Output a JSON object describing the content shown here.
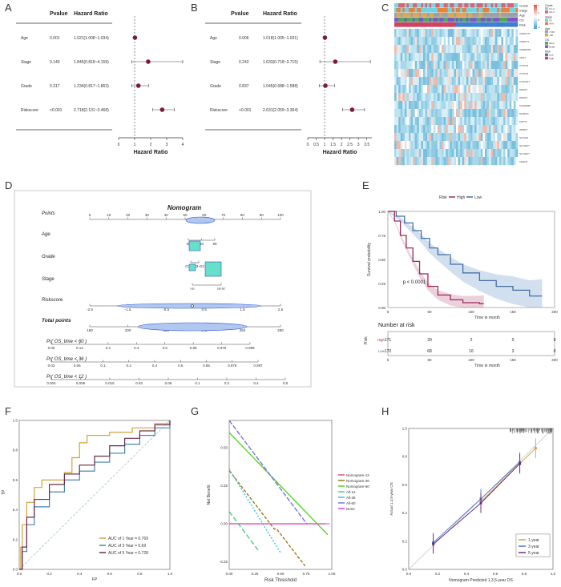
{
  "panel_letters": [
    "A",
    "B",
    "C",
    "D",
    "E",
    "F",
    "G",
    "H"
  ],
  "forest_A": {
    "col_pvalue": "Pvalue",
    "col_hr": "Hazard Ratio",
    "xlabel": "Hazard Ratio",
    "xticks": [
      0,
      1,
      2,
      3,
      4
    ],
    "xlim": [
      0,
      4
    ],
    "rows": [
      {
        "name": "Age",
        "p": "0.001",
        "hrtext": "1.021(1.008~1.034)",
        "hr": 1.021,
        "lo": 1.008,
        "hi": 1.034
      },
      {
        "name": "Stage",
        "p": "0.140",
        "hrtext": "1.845(0.818~4.159)",
        "hr": 1.845,
        "lo": 0.818,
        "hi": 4.159
      },
      {
        "name": "Grade",
        "p": "0.317",
        "hrtext": "1.234(0.817~1.863)",
        "hr": 1.234,
        "lo": 0.817,
        "hi": 1.863
      },
      {
        "name": "Riskscore",
        "p": "<0.001",
        "hrtext": "2.718(2.131~3.468)",
        "hr": 2.718,
        "lo": 2.131,
        "hi": 3.468
      }
    ]
  },
  "forest_B": {
    "col_pvalue": "Pvalue",
    "col_hr": "Hazard Ratio",
    "xlabel": "Hazard Ratio",
    "xticks": [
      0,
      0.5,
      1,
      1.5,
      2,
      2.5,
      3,
      3.5
    ],
    "xlim": [
      0,
      3.8
    ],
    "rows": [
      {
        "name": "Age",
        "p": "0.006",
        "hrtext": "1.018(1.005~1.031)",
        "hr": 1.018,
        "lo": 1.005,
        "hi": 1.031
      },
      {
        "name": "Stage",
        "p": "0.242",
        "hrtext": "1.633(0.718~3.715)",
        "hr": 1.633,
        "lo": 0.718,
        "hi": 3.715
      },
      {
        "name": "Grade",
        "p": "0.837",
        "hrtext": "1.045(0.688~1.588)",
        "hr": 1.045,
        "lo": 0.688,
        "hi": 1.588
      },
      {
        "name": "Riskscore",
        "p": "<0.001",
        "hrtext": "2.631(2.059~3.364)",
        "hr": 2.631,
        "lo": 2.059,
        "hi": 3.364
      }
    ]
  },
  "heatmap_C": {
    "annotation_rows": [
      "Grade",
      "Stage",
      "Age",
      "OS",
      "Risk"
    ],
    "genes": [
      "AURKA??",
      "AURKC?",
      "CHERNS4",
      "CDK?",
      "CYP2?4",
      "CYP2?4",
      "CYP2F1?",
      "DHRS?",
      "DHRS?",
      "CHARNE?",
      "DLMN?1",
      "KIF7?7",
      "OPRD?",
      "SLC2A2",
      "SLC22A?",
      "SLC22A?",
      "CHEN?"
    ],
    "legend": [
      {
        "title": "Grade",
        "items": [
          "G1-2",
          "G3-4"
        ],
        "colors": [
          "#7fd3e0",
          "#e06070"
        ]
      },
      {
        "title": "Stage",
        "items": [
          "I-II",
          "III-IV"
        ],
        "colors": [
          "#6fd3e6",
          "#e8823a"
        ]
      },
      {
        "title": "Age",
        "items": [
          "<=60",
          ">60"
        ],
        "colors": [
          "#9aa0a6",
          "#d6a85a"
        ]
      },
      {
        "title": "OS",
        "items": [
          "Alive",
          "Dead"
        ],
        "colors": [
          "#4ea85a",
          "#7b57c8"
        ]
      },
      {
        "title": "Risk",
        "items": [
          "Low",
          "High"
        ],
        "colors": [
          "#3d7fd0",
          "#d04060"
        ]
      }
    ],
    "scale": [
      "4",
      "2",
      "0",
      "-2"
    ]
  },
  "nomogram_D": {
    "title": "Nomogram",
    "rows": [
      {
        "label": "Points",
        "ticks": [
          "0",
          "10",
          "20",
          "30",
          "40",
          "50",
          "60",
          "70",
          "80",
          "90",
          "100"
        ]
      },
      {
        "label": "Age",
        "ticks": [
          "30",
          "60",
          "90"
        ]
      },
      {
        "label": "Grade",
        "ticks": [
          "G1-G2",
          "G3-G4"
        ]
      },
      {
        "label": "Stage",
        "ticks": [
          "I-II",
          "III-IV"
        ]
      },
      {
        "label": "Riskscore",
        "ticks": [
          "-2.5",
          "-1.5",
          "-0.5",
          "0.5",
          "1.5",
          "2.5"
        ]
      },
      {
        "label": "Total points",
        "ticks": [
          "180",
          "200",
          "220",
          "240",
          "260",
          "280"
        ]
      },
      {
        "label": "Pr( OS_time < 60 )",
        "ticks": [
          "0.06",
          "0.12",
          "0.2",
          "0.4",
          "0.6",
          "0.85",
          "0.975",
          "0.998"
        ]
      },
      {
        "label": "Pr( OS_time < 36 )",
        "ticks": [
          "0.03",
          "0.06",
          "0.1",
          "0.2",
          "0.4",
          "0.6",
          "0.85",
          "0.975",
          "0.997"
        ]
      },
      {
        "label": "Pr( OS_time < 12 )",
        "ticks": [
          "0.004",
          "0.006",
          "0.015",
          "0.03",
          "0.06",
          "0.1",
          "0.2",
          "0.4",
          "0.6"
        ]
      }
    ]
  },
  "km_E": {
    "legend_title": "Risk",
    "series": [
      {
        "name": "High",
        "color": "#9b2c57"
      },
      {
        "name": "Low",
        "color": "#4470a5"
      }
    ],
    "ylabel": "Survival probability",
    "xlabel": "Time in month",
    "yticks": [
      "0.00",
      "0.25",
      "0.50",
      "0.75",
      "1.00"
    ],
    "xticks": [
      "0",
      "50",
      "100",
      "150",
      "200"
    ],
    "pvalue": "p < 0.0001",
    "risk_table": {
      "title": "Number at risk",
      "ylabel": "Risk",
      "rows": [
        {
          "name": "High",
          "counts": [
            "171",
            "29",
            "2",
            "0",
            "0"
          ]
        },
        {
          "name": "Low",
          "counts": [
            "170",
            "68",
            "16",
            "3",
            "0"
          ]
        }
      ],
      "xlabel": "Time in month"
    }
  },
  "roc_F": {
    "xlabel": "FP",
    "ylabel": "TP",
    "xticks": [
      "0.0",
      "0.2",
      "0.4",
      "0.6",
      "0.8",
      "1.0"
    ],
    "yticks": [
      "0.0",
      "0.2",
      "0.4",
      "0.6",
      "0.8",
      "1.0"
    ],
    "series": [
      {
        "name": "AUC of 1 Year = 0.769",
        "color": "#d4a23a"
      },
      {
        "name": "AUC of 3 Year = 0.69",
        "color": "#4682b4"
      },
      {
        "name": "AUC of 5 Year = 0.728",
        "color": "#6b2a4a"
      }
    ]
  },
  "dca_G": {
    "xlabel": "Risk Threshold",
    "ylabel": "Net Benefit",
    "xticks": [
      "0.00",
      "0.25",
      "0.50",
      "0.75",
      "1.00"
    ],
    "yticks": [
      "-0.25",
      "0.00",
      "0.25",
      "0.50"
    ],
    "series": [
      {
        "name": "Nomogram-12",
        "color": "#e04a8c"
      },
      {
        "name": "Nomogram-36",
        "color": "#a0781e"
      },
      {
        "name": "Nomogram-60",
        "color": "#5ad424"
      },
      {
        "name": "All-12",
        "color": "#3cd27a"
      },
      {
        "name": "All-36",
        "color": "#38c6d8"
      },
      {
        "name": "All-60",
        "color": "#7a74e0"
      },
      {
        "name": "None",
        "color": "#e040e0"
      }
    ]
  },
  "calib_H": {
    "xlabel": "Nomogram Predicted 1,3,5-year OS",
    "ylabel": "Actual 1,3,5-year OS",
    "xticks": [
      "0.0",
      "0.2",
      "0.4",
      "0.6",
      "0.8",
      "1.0"
    ],
    "yticks": [
      "0.0",
      "0.2",
      "0.4",
      "0.6",
      "0.8",
      "1.0"
    ],
    "series": [
      {
        "name": "1 year",
        "color": "#e0a040"
      },
      {
        "name": "3 year",
        "color": "#4a78d0"
      },
      {
        "name": "5 year",
        "color": "#6a3070"
      }
    ]
  }
}
